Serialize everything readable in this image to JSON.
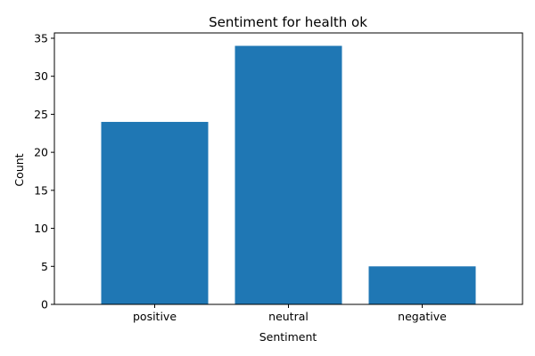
{
  "chart_data": {
    "type": "bar",
    "title": "Sentiment for health ok",
    "xlabel": "Sentiment",
    "ylabel": "Count",
    "categories": [
      "positive",
      "neutral",
      "negative"
    ],
    "values": [
      24,
      34,
      5
    ],
    "ylim": [
      0,
      35.7
    ],
    "yticks": [
      "0",
      "5",
      "10",
      "15",
      "20",
      "25",
      "30",
      "35"
    ],
    "bar_color": "#1f77b4",
    "grid": false,
    "legend": "none"
  }
}
